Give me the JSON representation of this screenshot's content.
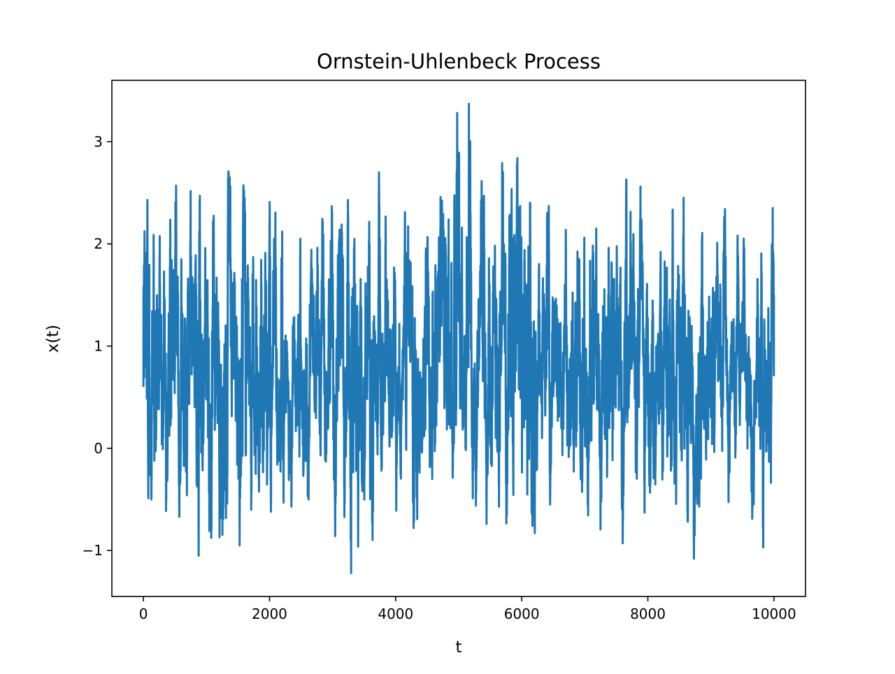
{
  "chart_data": {
    "type": "line",
    "title": "Ornstein-Uhlenbeck Process",
    "xlabel": "t",
    "ylabel": "x(t)",
    "xlim": [
      -500,
      10500
    ],
    "ylim": [
      -1.45,
      3.6
    ],
    "xticks": [
      0,
      2000,
      4000,
      6000,
      8000,
      10000
    ],
    "xtick_labels": [
      "0",
      "2000",
      "4000",
      "6000",
      "8000",
      "10000"
    ],
    "yticks": [
      -1,
      0,
      1,
      2,
      3
    ],
    "ytick_labels": [
      "−1",
      "0",
      "1",
      "2",
      "3"
    ],
    "grid": false,
    "legend": "none",
    "series": [
      {
        "color": "#1f77b4",
        "x": [
          0,
          500,
          1000,
          1500,
          2000,
          2500,
          3000,
          3500,
          4000,
          4500,
          5000,
          5500,
          6000,
          6500,
          7000,
          7500,
          8000,
          8500,
          9000,
          9500,
          10000
        ],
        "summary": {
          "n_points": 10001,
          "mean": 0.8,
          "min": -1.22,
          "max": 3.37,
          "t_at_max": 5100,
          "t_at_min": 3600
        },
        "approx_window_max": [
          2.43,
          2.57,
          2.47,
          2.71,
          2.41,
          2.05,
          2.43,
          2.7,
          2.31,
          2.46,
          3.37,
          2.79,
          2.84,
          2.37,
          2.15,
          2.63,
          2.56,
          2.45,
          2.34,
          2.08,
          2.35
        ],
        "approx_window_min": [
          -0.5,
          -0.67,
          -1.05,
          -0.95,
          -0.62,
          -0.57,
          -0.86,
          -1.22,
          -0.61,
          -0.78,
          -0.49,
          -0.74,
          -0.83,
          -0.55,
          -0.73,
          -0.93,
          -0.63,
          -1.08,
          -0.57,
          -0.69,
          -0.97
        ]
      }
    ]
  }
}
